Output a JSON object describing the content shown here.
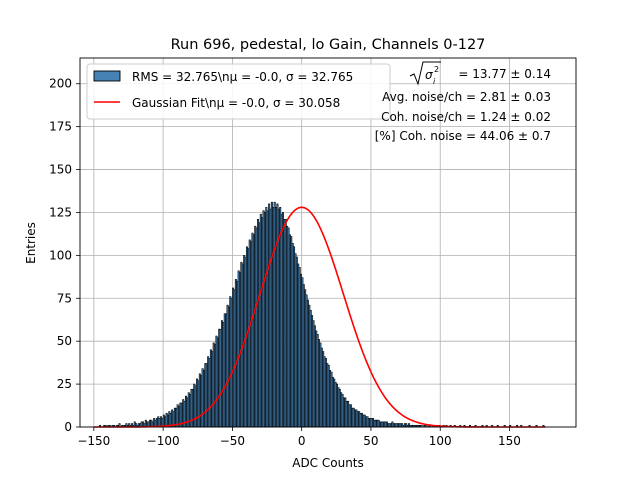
{
  "chart_data": {
    "type": "bar",
    "title": "Run 696, pedestal, lo Gain, Channels 0-127",
    "xlabel": "ADC Counts",
    "ylabel": "Entries",
    "xlim": [
      -160,
      198
    ],
    "ylim": [
      0,
      215
    ],
    "xticks": [
      -150,
      -100,
      -50,
      0,
      50,
      100,
      150
    ],
    "yticks": [
      0,
      25,
      50,
      75,
      100,
      125,
      150,
      175,
      200
    ],
    "grid": true,
    "legend_position": "top-left",
    "histogram": {
      "name": "RMS = 32.765\\nμ = -0.0, σ = 32.765",
      "color": "#4682b4",
      "edgecolor": "#000000",
      "bin_start": -148,
      "bin_width": 1,
      "counts": [
        0,
        0,
        1,
        0,
        0,
        1,
        1,
        0,
        1,
        1,
        0,
        1,
        1,
        0,
        1,
        1,
        2,
        0,
        1,
        1,
        1,
        2,
        1,
        2,
        1,
        2,
        1,
        3,
        2,
        1,
        2,
        2,
        3,
        3,
        2,
        4,
        3,
        3,
        4,
        4,
        3,
        5,
        4,
        5,
        6,
        5,
        6,
        5,
        7,
        6,
        8,
        7,
        9,
        8,
        10,
        9,
        11,
        11,
        13,
        12,
        14,
        14,
        16,
        15,
        18,
        17,
        20,
        19,
        22,
        22,
        25,
        24,
        28,
        27,
        31,
        30,
        34,
        33,
        37,
        37,
        41,
        40,
        45,
        44,
        49,
        48,
        53,
        52,
        57,
        57,
        62,
        61,
        66,
        66,
        71,
        70,
        76,
        75,
        81,
        80,
        86,
        85,
        91,
        90,
        96,
        95,
        100,
        99,
        105,
        104,
        109,
        108,
        113,
        112,
        117,
        116,
        121,
        119,
        124,
        122,
        126,
        125,
        128,
        126,
        130,
        127,
        131,
        128,
        131,
        128,
        130,
        127,
        128,
        124,
        125,
        121,
        121,
        117,
        116,
        112,
        111,
        107,
        105,
        101,
        99,
        95,
        93,
        89,
        87,
        83,
        80,
        77,
        74,
        71,
        68,
        65,
        62,
        59,
        56,
        54,
        51,
        49,
        46,
        44,
        41,
        40,
        37,
        36,
        33,
        32,
        29,
        28,
        26,
        25,
        23,
        22,
        20,
        19,
        17,
        17,
        15,
        15,
        13,
        13,
        11,
        11,
        10,
        10,
        9,
        9,
        8,
        8,
        7,
        7,
        6,
        6,
        5,
        5,
        5,
        5,
        4,
        4,
        4,
        4,
        3,
        3,
        3,
        3,
        3,
        3,
        2,
        2,
        2,
        3,
        2,
        2,
        2,
        2,
        2,
        2,
        2,
        1,
        2,
        2,
        1,
        2,
        1,
        1,
        1,
        1,
        1,
        1,
        1,
        1,
        1,
        0,
        1,
        1,
        0,
        1,
        1,
        0,
        1,
        0,
        1,
        1,
        0,
        1,
        0,
        0,
        1,
        0,
        1,
        0,
        0,
        1,
        0,
        0,
        1,
        0,
        0,
        0,
        1,
        0,
        0,
        1,
        0,
        0,
        0,
        1,
        0,
        0,
        0,
        1,
        0,
        0,
        0,
        0,
        1,
        0,
        0,
        1,
        0,
        0,
        0,
        1,
        0,
        0,
        0,
        1,
        0,
        0,
        0,
        0,
        1,
        0,
        0,
        0,
        1,
        0,
        0,
        0,
        0,
        1,
        0,
        0,
        1,
        0,
        0,
        0,
        0,
        0,
        1,
        0,
        0,
        0,
        0,
        1,
        0,
        0,
        0,
        0,
        1,
        0
      ]
    },
    "fit": {
      "name": "Gaussian Fit\\nμ = -0.0, σ = 30.058",
      "color": "#ff0000",
      "mu": 0.0,
      "sigma": 30.058,
      "amplitude": 128
    },
    "annotations": [
      "= 13.77 ± 0.14",
      "Avg. noise/ch = 2.81 ± 0.03",
      "Coh. noise/ch = 1.24 ± 0.02",
      "[%] Coh. noise = 44.06 ± 0.7"
    ]
  }
}
